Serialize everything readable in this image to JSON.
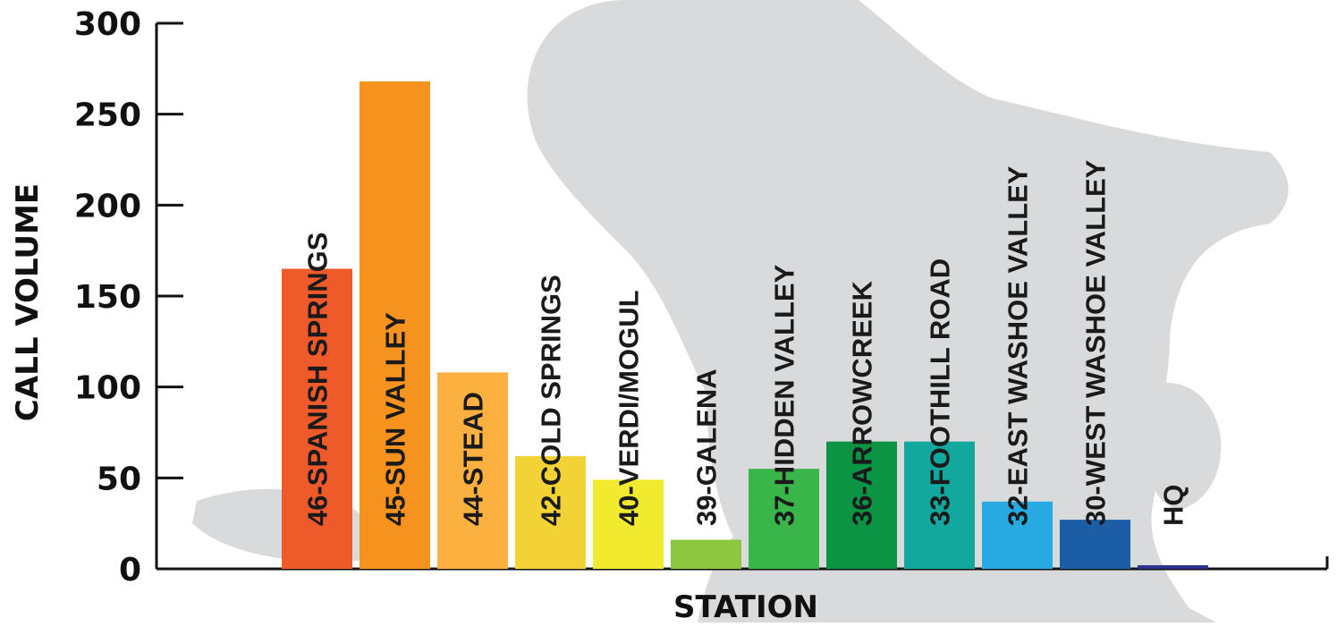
{
  "chart_data": {
    "type": "bar",
    "title": "",
    "xlabel": "STATION",
    "ylabel": "CALL VOLUME",
    "ylim": [
      0,
      300
    ],
    "yticks": [
      0,
      50,
      100,
      150,
      200,
      250,
      300
    ],
    "grid": false,
    "legend": "none",
    "categories": [
      "46-SPANISH SPRINGS",
      "45-SUN VALLEY",
      "44-STEAD",
      "42-COLD SPRINGS",
      "40-VERDI/MOGUL",
      "39-GALENA",
      "37-HIDDEN VALLEY",
      "36-ARROWCREEK",
      "33-FOOTHILL ROAD",
      "32-EAST WASHOE VALLEY",
      "30-WEST WASHOE VALLEY",
      "HQ"
    ],
    "values": [
      165,
      268,
      108,
      62,
      49,
      16,
      55,
      70,
      70,
      37,
      27,
      2
    ],
    "colors": [
      "#ef5a2a",
      "#f6921e",
      "#fbb040",
      "#f3d235",
      "#f2ea2f",
      "#8dc63f",
      "#39b54a",
      "#0b9444",
      "#13a89e",
      "#27aae1",
      "#1b5ea6",
      "#2e3192"
    ],
    "background_silhouette_color": "#d9dadb"
  }
}
